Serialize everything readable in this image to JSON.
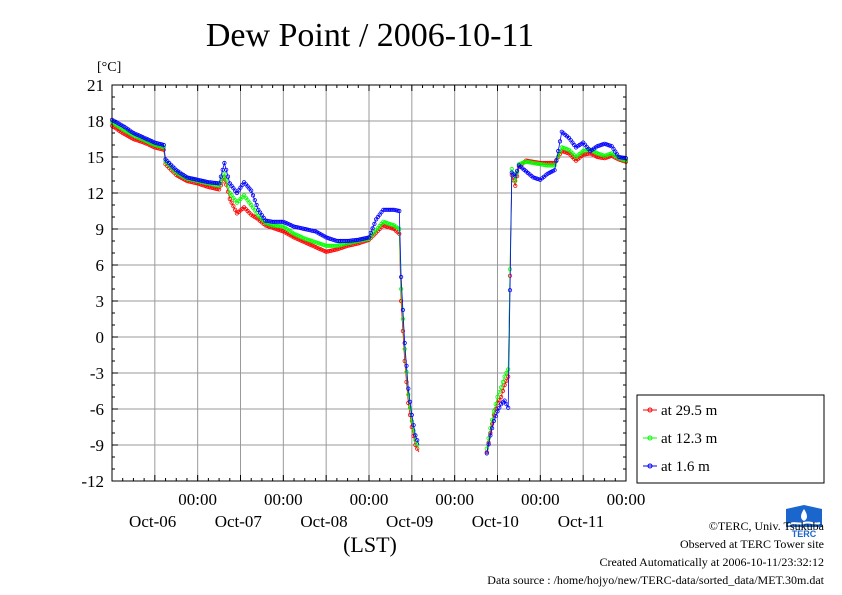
{
  "chart_data": {
    "type": "line",
    "title": "Dew Point / 2006-10-11",
    "ylabel": "[°C]",
    "xlabel": "(LST)",
    "ylim": [
      -12,
      21
    ],
    "yticks": [
      21,
      18,
      15,
      12,
      9,
      6,
      3,
      0,
      -3,
      -6,
      -9,
      -12
    ],
    "x_units": "hours since 2006-10-05 00:00 LST",
    "xlim": [
      0,
      144
    ],
    "x_tick_labels": [
      {
        "x": 24,
        "time": "00:00",
        "date": "Oct-06"
      },
      {
        "x": 48,
        "time": "00:00",
        "date": "Oct-07"
      },
      {
        "x": 72,
        "time": "00:00",
        "date": "Oct-08"
      },
      {
        "x": 96,
        "time": "00:00",
        "date": "Oct-09"
      },
      {
        "x": 120,
        "time": "00:00",
        "date": "Oct-10"
      },
      {
        "x": 144,
        "time": "00:00",
        "date": "Oct-11"
      }
    ],
    "grid": true,
    "legend": "bottom-right outside",
    "series": [
      {
        "name": "at 29.5 m",
        "color": "#ff0000",
        "marker": "circle",
        "points": [
          [
            0,
            17.6
          ],
          [
            3,
            17.0
          ],
          [
            6,
            16.5
          ],
          [
            9,
            16.2
          ],
          [
            12,
            15.8
          ],
          [
            14.5,
            15.6
          ],
          [
            15,
            14.4
          ],
          [
            18,
            13.5
          ],
          [
            21,
            13.0
          ],
          [
            24,
            12.8
          ],
          [
            27,
            12.5
          ],
          [
            30,
            12.3
          ],
          [
            31.5,
            13.3
          ],
          [
            33,
            11.5
          ],
          [
            35,
            10.3
          ],
          [
            37,
            10.8
          ],
          [
            39,
            10.2
          ],
          [
            41,
            9.8
          ],
          [
            43,
            9.3
          ],
          [
            45,
            9.1
          ],
          [
            48,
            8.8
          ],
          [
            51,
            8.3
          ],
          [
            54,
            7.9
          ],
          [
            57,
            7.5
          ],
          [
            60,
            7.1
          ],
          [
            63,
            7.3
          ],
          [
            66,
            7.6
          ],
          [
            69,
            7.8
          ],
          [
            72,
            8.1
          ],
          [
            74,
            8.7
          ],
          [
            76,
            9.3
          ],
          [
            79,
            9.0
          ],
          [
            80.5,
            8.6
          ],
          [
            81,
            3.0
          ],
          [
            82,
            -2.0
          ],
          [
            83,
            -5.5
          ],
          [
            84,
            -7.5
          ],
          [
            85,
            -9.0
          ],
          [
            86,
            -9.6
          ],
          [
            null,
            null
          ],
          [
            105,
            -9.6
          ],
          [
            106,
            -8.0
          ],
          [
            107,
            -6.5
          ],
          [
            108,
            -5.5
          ],
          [
            109,
            -5.0
          ],
          [
            110,
            -4.0
          ],
          [
            111,
            -3.3
          ],
          [
            112,
            13.5
          ],
          [
            113,
            12.6
          ],
          [
            114,
            14.2
          ],
          [
            116,
            14.7
          ],
          [
            118,
            14.6
          ],
          [
            120,
            14.5
          ],
          [
            122,
            14.5
          ],
          [
            124,
            14.5
          ],
          [
            126,
            15.5
          ],
          [
            128,
            15.3
          ],
          [
            130,
            14.7
          ],
          [
            132,
            15.2
          ],
          [
            134,
            15.3
          ],
          [
            136,
            15.0
          ],
          [
            138,
            14.9
          ],
          [
            140,
            15.1
          ],
          [
            142,
            14.8
          ],
          [
            144,
            14.6
          ]
        ]
      },
      {
        "name": "at 12.3 m",
        "color": "#00ff00",
        "marker": "circle",
        "points": [
          [
            0,
            17.9
          ],
          [
            3,
            17.3
          ],
          [
            6,
            16.8
          ],
          [
            9,
            16.4
          ],
          [
            12,
            16.0
          ],
          [
            14.5,
            15.8
          ],
          [
            15,
            14.6
          ],
          [
            18,
            13.7
          ],
          [
            21,
            13.2
          ],
          [
            24,
            13.0
          ],
          [
            27,
            12.8
          ],
          [
            30,
            12.6
          ],
          [
            31.5,
            13.6
          ],
          [
            33,
            12.0
          ],
          [
            35,
            11.2
          ],
          [
            37,
            11.8
          ],
          [
            39,
            11.0
          ],
          [
            41,
            10.1
          ],
          [
            43,
            9.5
          ],
          [
            45,
            9.3
          ],
          [
            48,
            9.2
          ],
          [
            51,
            8.6
          ],
          [
            54,
            8.2
          ],
          [
            57,
            7.9
          ],
          [
            60,
            7.6
          ],
          [
            63,
            7.6
          ],
          [
            66,
            7.8
          ],
          [
            69,
            8.0
          ],
          [
            72,
            8.2
          ],
          [
            74,
            8.9
          ],
          [
            76,
            9.6
          ],
          [
            79,
            9.3
          ],
          [
            80.5,
            9.0
          ],
          [
            81,
            4.0
          ],
          [
            82,
            -1.0
          ],
          [
            83,
            -4.8
          ],
          [
            84,
            -7.0
          ],
          [
            85,
            -8.6
          ],
          [
            86,
            -9.3
          ],
          [
            null,
            null
          ],
          [
            105,
            -9.3
          ],
          [
            106,
            -7.6
          ],
          [
            107,
            -6.2
          ],
          [
            108,
            -5.0
          ],
          [
            109,
            -4.2
          ],
          [
            110,
            -3.3
          ],
          [
            111,
            -2.7
          ],
          [
            112,
            14.0
          ],
          [
            113,
            13.0
          ],
          [
            114,
            14.4
          ],
          [
            116,
            14.6
          ],
          [
            118,
            14.5
          ],
          [
            120,
            14.4
          ],
          [
            122,
            14.3
          ],
          [
            124,
            14.3
          ],
          [
            126,
            15.8
          ],
          [
            128,
            15.6
          ],
          [
            130,
            15.0
          ],
          [
            132,
            15.5
          ],
          [
            134,
            15.6
          ],
          [
            136,
            15.3
          ],
          [
            138,
            15.1
          ],
          [
            140,
            15.3
          ],
          [
            142,
            14.9
          ],
          [
            144,
            14.7
          ]
        ]
      },
      {
        "name": "at 1.6 m",
        "color": "#0000ff",
        "marker": "circle",
        "points": [
          [
            0,
            18.1
          ],
          [
            3,
            17.6
          ],
          [
            6,
            17.0
          ],
          [
            9,
            16.6
          ],
          [
            12,
            16.2
          ],
          [
            14.5,
            16.0
          ],
          [
            15,
            14.8
          ],
          [
            18,
            13.9
          ],
          [
            21,
            13.3
          ],
          [
            24,
            13.1
          ],
          [
            27,
            12.9
          ],
          [
            30,
            12.8
          ],
          [
            31.5,
            14.5
          ],
          [
            33,
            12.8
          ],
          [
            35,
            12.0
          ],
          [
            37,
            12.9
          ],
          [
            39,
            12.2
          ],
          [
            41,
            10.6
          ],
          [
            43,
            9.7
          ],
          [
            45,
            9.6
          ],
          [
            48,
            9.6
          ],
          [
            51,
            9.2
          ],
          [
            54,
            9.0
          ],
          [
            57,
            8.8
          ],
          [
            60,
            8.3
          ],
          [
            63,
            8.0
          ],
          [
            66,
            8.0
          ],
          [
            69,
            8.1
          ],
          [
            72,
            8.3
          ],
          [
            74,
            9.8
          ],
          [
            76,
            10.6
          ],
          [
            79,
            10.6
          ],
          [
            80.5,
            10.5
          ],
          [
            81,
            5.0
          ],
          [
            82,
            -0.5
          ],
          [
            83,
            -4.3
          ],
          [
            84,
            -6.5
          ],
          [
            85,
            -8.2
          ],
          [
            86,
            -9.0
          ],
          [
            null,
            null
          ],
          [
            105,
            -9.7
          ],
          [
            106,
            -8.2
          ],
          [
            107,
            -7.0
          ],
          [
            108,
            -6.2
          ],
          [
            109,
            -5.6
          ],
          [
            110,
            -5.3
          ],
          [
            111,
            -5.9
          ],
          [
            112,
            13.7
          ],
          [
            113,
            13.4
          ],
          [
            114,
            14.3
          ],
          [
            116,
            13.8
          ],
          [
            118,
            13.3
          ],
          [
            120,
            13.1
          ],
          [
            122,
            13.6
          ],
          [
            124,
            13.9
          ],
          [
            126,
            17.1
          ],
          [
            128,
            16.6
          ],
          [
            130,
            15.8
          ],
          [
            132,
            16.2
          ],
          [
            134,
            15.5
          ],
          [
            136,
            15.9
          ],
          [
            138,
            16.1
          ],
          [
            140,
            15.9
          ],
          [
            142,
            15.0
          ],
          [
            144,
            14.9
          ]
        ]
      }
    ]
  },
  "footer": {
    "copyright": "©TERC, Univ. Tsukuba",
    "observed": "Observed at TERC Tower site",
    "created": "Created Automatically at 2006-10-11/23:32:12",
    "source": "Data source : /home/hojyo/new/TERC-data/sorted_data/MET.30m.dat"
  },
  "logo": {
    "text": "TERC",
    "color": "#1a66cc"
  }
}
